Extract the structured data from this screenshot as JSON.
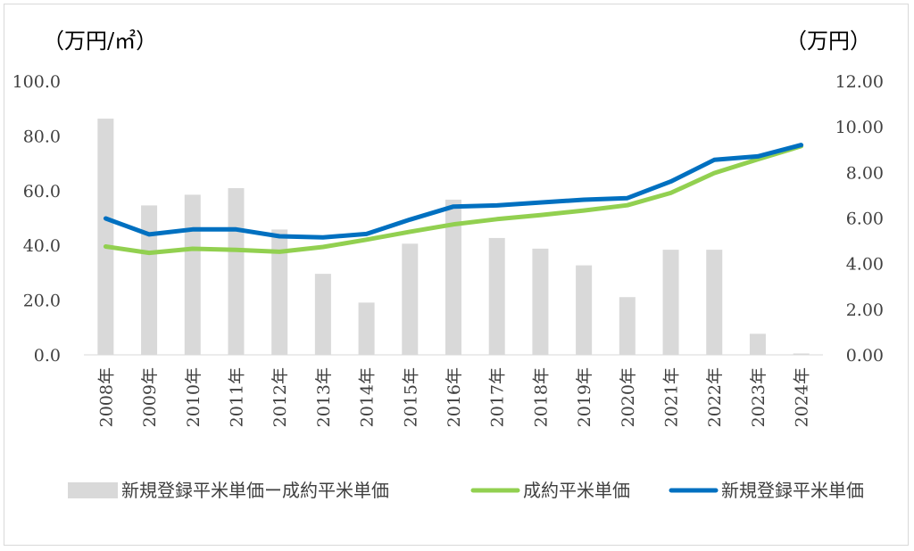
{
  "chart_data": {
    "type": "bar+line",
    "left_axis_unit": "（万円/㎡）",
    "right_axis_unit": "（万円）",
    "categories": [
      "2008年",
      "2009年",
      "2010年",
      "2011年",
      "2012年",
      "2013年",
      "2014年",
      "2015年",
      "2016年",
      "2017年",
      "2018年",
      "2019年",
      "2020年",
      "2021年",
      "2022年",
      "2023年",
      "2024年"
    ],
    "left_ticks": [
      "0.0",
      "20.0",
      "40.0",
      "60.0",
      "80.0",
      "100.0"
    ],
    "right_ticks": [
      "0.00",
      "2.00",
      "4.00",
      "6.00",
      "8.00",
      "10.00",
      "12.00"
    ],
    "left_ylim": [
      0,
      100
    ],
    "right_ylim": [
      0,
      12
    ],
    "grid": false,
    "legend_position": "bottom",
    "series": [
      {
        "name": "新規登録平米単価ー成約平米単価",
        "kind": "bar",
        "axis": "left",
        "color": "#d9d9d9",
        "values": [
          86.3,
          54.6,
          58.5,
          60.9,
          45.8,
          29.6,
          19.1,
          40.6,
          56.7,
          42.7,
          38.8,
          32.7,
          21.1,
          38.4,
          38.4,
          7.7,
          0.5
        ]
      },
      {
        "name": "成約平米単価",
        "kind": "line",
        "axis": "right",
        "color": "#92d050",
        "values": [
          4.75,
          4.47,
          4.65,
          4.6,
          4.52,
          4.73,
          5.05,
          5.4,
          5.72,
          5.95,
          6.13,
          6.33,
          6.56,
          7.1,
          7.97,
          8.57,
          9.15
        ]
      },
      {
        "name": "新規登録平米単価",
        "kind": "line",
        "axis": "right",
        "color": "#0070c0",
        "values": [
          5.98,
          5.28,
          5.5,
          5.5,
          5.2,
          5.15,
          5.3,
          5.93,
          6.5,
          6.55,
          6.68,
          6.8,
          6.87,
          7.6,
          8.55,
          8.7,
          9.2
        ]
      }
    ]
  }
}
